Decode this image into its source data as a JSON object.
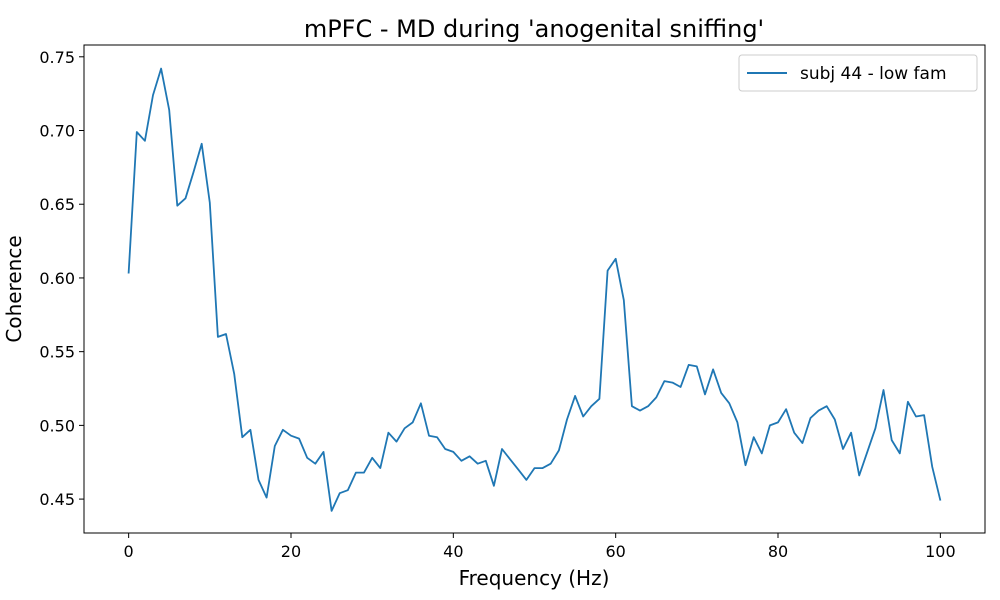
{
  "chart_data": {
    "type": "line",
    "title": "mPFC - MD during 'anogenital sniffing'",
    "xlabel": "Frequency (Hz)",
    "ylabel": "Coherence",
    "xlim": [
      -5.5,
      105.5
    ],
    "ylim": [
      0.427,
      0.758
    ],
    "xticks": [
      0,
      20,
      40,
      60,
      80,
      100
    ],
    "xtick_labels": [
      "0",
      "20",
      "40",
      "60",
      "80",
      "100"
    ],
    "yticks": [
      0.45,
      0.5,
      0.55,
      0.6,
      0.65,
      0.7,
      0.75
    ],
    "ytick_labels": [
      "0.45",
      "0.50",
      "0.55",
      "0.60",
      "0.65",
      "0.70",
      "0.75"
    ],
    "grid": false,
    "legend_position": "upper right",
    "series": [
      {
        "name": "subj 44 - low fam",
        "color": "#1f77b4",
        "x": [
          0,
          1,
          2,
          3,
          4,
          5,
          6,
          7,
          8,
          9,
          10,
          11,
          12,
          13,
          14,
          15,
          16,
          17,
          18,
          19,
          20,
          21,
          22,
          23,
          24,
          25,
          26,
          27,
          28,
          29,
          30,
          31,
          32,
          33,
          34,
          35,
          36,
          37,
          38,
          39,
          40,
          41,
          42,
          43,
          44,
          45,
          46,
          47,
          48,
          49,
          50,
          51,
          52,
          53,
          54,
          55,
          56,
          57,
          58,
          59,
          60,
          61,
          62,
          63,
          64,
          65,
          66,
          67,
          68,
          69,
          70,
          71,
          72,
          73,
          74,
          75,
          76,
          77,
          78,
          79,
          80,
          81,
          82,
          83,
          84,
          85,
          86,
          87,
          88,
          89,
          90,
          91,
          92,
          93,
          94,
          95,
          96,
          97,
          98,
          99,
          100
        ],
        "values": [
          0.603,
          0.699,
          0.693,
          0.724,
          0.742,
          0.714,
          0.649,
          0.654,
          0.672,
          0.691,
          0.651,
          0.56,
          0.562,
          0.535,
          0.492,
          0.497,
          0.463,
          0.451,
          0.486,
          0.497,
          0.493,
          0.491,
          0.478,
          0.474,
          0.482,
          0.442,
          0.454,
          0.456,
          0.468,
          0.468,
          0.478,
          0.471,
          0.495,
          0.489,
          0.498,
          0.502,
          0.515,
          0.493,
          0.492,
          0.484,
          0.482,
          0.476,
          0.479,
          0.474,
          0.476,
          0.459,
          0.484,
          0.477,
          0.47,
          0.463,
          0.471,
          0.471,
          0.474,
          0.483,
          0.504,
          0.52,
          0.506,
          0.513,
          0.518,
          0.605,
          0.613,
          0.585,
          0.513,
          0.51,
          0.513,
          0.519,
          0.53,
          0.529,
          0.526,
          0.541,
          0.54,
          0.521,
          0.538,
          0.522,
          0.515,
          0.502,
          0.473,
          0.492,
          0.481,
          0.5,
          0.502,
          0.511,
          0.495,
          0.488,
          0.505,
          0.51,
          0.513,
          0.504,
          0.484,
          0.495,
          0.466,
          0.482,
          0.498,
          0.524,
          0.49,
          0.481,
          0.516,
          0.506,
          0.507,
          0.472,
          0.449
        ]
      }
    ]
  }
}
